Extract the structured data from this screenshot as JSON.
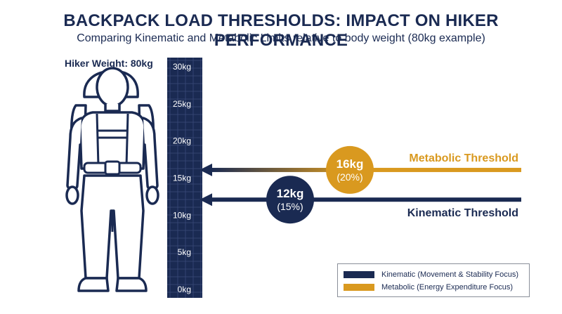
{
  "header": {
    "title": "BACKPACK LOAD THRESHOLDS: IMPACT ON HIKER PERFORMANCE",
    "subtitle": "Comparing Kinematic and Metabolic Limits relative to body weight (80kg example)"
  },
  "hiker": {
    "weight_label": "Hiker Weight: 80kg"
  },
  "scale": {
    "min": 0,
    "max": 30,
    "ticks": [
      {
        "value": 30,
        "label": "30kg"
      },
      {
        "value": 25,
        "label": "25kg"
      },
      {
        "value": 20,
        "label": "20kg"
      },
      {
        "value": 15,
        "label": "15kg"
      },
      {
        "value": 10,
        "label": "10kg"
      },
      {
        "value": 5,
        "label": "5kg"
      },
      {
        "value": 0,
        "label": "0kg"
      }
    ]
  },
  "thresholds": {
    "metabolic": {
      "name": "Metabolic Threshold",
      "value": 16,
      "value_label": "16kg",
      "percent_label": "(20%)",
      "color": "#d9991f"
    },
    "kinematic": {
      "name": "Kinematic Threshold",
      "value": 12,
      "value_label": "12kg",
      "percent_label": "(15%)",
      "color": "#1a2a52"
    }
  },
  "legend": {
    "kinematic": "Kinematic (Movement & Stability Focus)",
    "metabolic": "Metabolic (Energy Expenditure Focus)"
  },
  "colors": {
    "navy": "#1a2a52",
    "gold": "#d9991f",
    "grid": "#3a4a7a"
  }
}
